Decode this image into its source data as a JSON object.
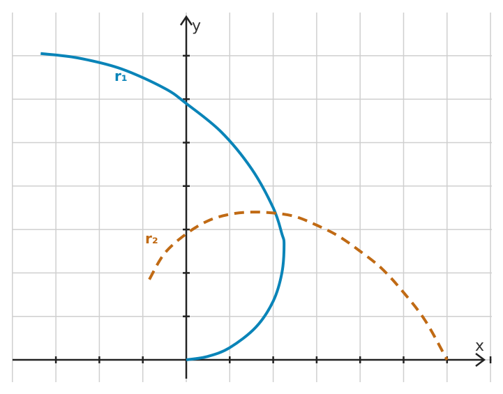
{
  "chart_data": {
    "type": "line",
    "title": "",
    "xlabel": "x",
    "ylabel": "y",
    "xlim": [
      -4,
      7
    ],
    "ylim": [
      -0.5,
      7.8
    ],
    "grid": true,
    "series": [
      {
        "name": "r₁",
        "color": "#0a84b8",
        "style": "solid",
        "x": [
          -3.35,
          -2.5,
          -1.5,
          -0.5,
          0,
          0.8,
          1.5,
          2.0,
          2.2,
          2.25,
          2.2,
          2.0,
          1.6,
          1.0,
          0.5,
          0
        ],
        "y": [
          7.05,
          6.95,
          6.7,
          6.25,
          5.9,
          5.25,
          4.4,
          3.5,
          2.9,
          2.65,
          2.0,
          1.35,
          0.75,
          0.28,
          0.08,
          0
        ]
      },
      {
        "name": "r₂",
        "color": "#c06a14",
        "style": "dashed",
        "x": [
          -0.85,
          -0.5,
          0,
          0.5,
          1.0,
          1.5,
          2.0,
          2.5,
          3.0,
          3.5,
          4.0,
          4.5,
          5.0,
          5.5,
          6.0
        ],
        "y": [
          1.85,
          2.45,
          2.9,
          3.2,
          3.35,
          3.4,
          3.38,
          3.3,
          3.1,
          2.85,
          2.5,
          2.1,
          1.55,
          0.9,
          0
        ]
      }
    ]
  }
}
